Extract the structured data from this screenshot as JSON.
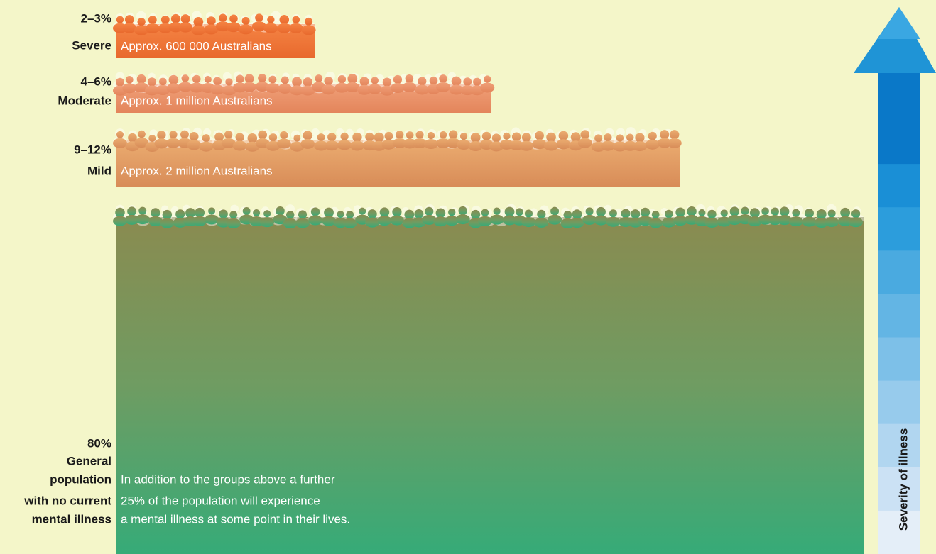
{
  "groups": [
    {
      "percent": "2–3%",
      "label": [
        "Severe"
      ],
      "description": [
        "Approx. 600 000 Australians"
      ]
    },
    {
      "percent": "4–6%",
      "label": [
        "Moderate"
      ],
      "description": [
        "Approx. 1 million Australians"
      ]
    },
    {
      "percent": "9–12%",
      "label": [
        "Mild"
      ],
      "description": [
        "Approx. 2 million Australians"
      ]
    },
    {
      "percent": "80%",
      "label": [
        "General",
        "population",
        "with no current",
        "mental illness"
      ],
      "description": [
        "In addition to the groups above a further",
        "25% of the population will experience",
        "a mental illness at some point in their lives."
      ]
    }
  ],
  "axis_label": "Severity of illness"
}
